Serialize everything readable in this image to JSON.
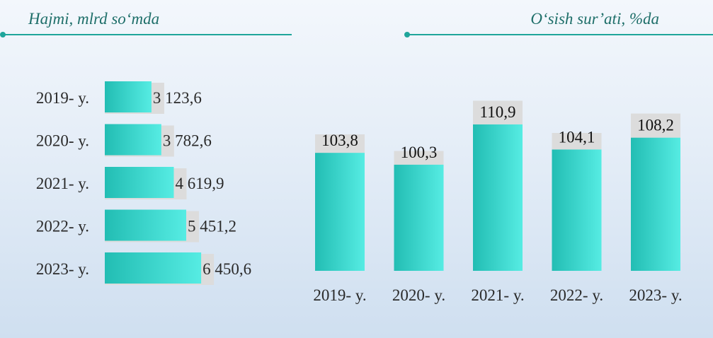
{
  "titles": {
    "left": "Hajmi, mlrd so‘mda",
    "right": "O‘sish sur’ati, %da"
  },
  "colors": {
    "bar_light": "#56ece3",
    "bar_dark": "#22bdb3",
    "track": "#dcdcdc",
    "rule": "#1fa59b",
    "title_text": "#1f6f6a",
    "label_text": "#2a2a2a"
  },
  "chart_data": [
    {
      "type": "bar",
      "orientation": "horizontal",
      "categories": [
        "2019- y.",
        "2020- y.",
        "2021- y.",
        "2022- y.",
        "2023- y."
      ],
      "values": [
        3123.6,
        3782.6,
        4619.9,
        5451.2,
        6450.6
      ],
      "value_labels": [
        "3 123,6",
        "3 782,6",
        "4 619,9",
        "5 451,2",
        "6 450,6"
      ],
      "xlim": [
        0,
        8000
      ],
      "grid": false
    },
    {
      "type": "bar",
      "orientation": "vertical",
      "categories": [
        "2019- y.",
        "2020- y.",
        "2021- y.",
        "2022- y.",
        "2023- y."
      ],
      "values": [
        103.8,
        100.3,
        110.9,
        104.1,
        108.2
      ],
      "value_labels": [
        "103,8",
        "100,3",
        "110,9",
        "104,1",
        "108,2"
      ],
      "backdrop_values": [
        99.9,
        97.4,
        105.9,
        100.6,
        103.1
      ],
      "ylim": [
        75,
        115
      ],
      "grid": false
    }
  ]
}
